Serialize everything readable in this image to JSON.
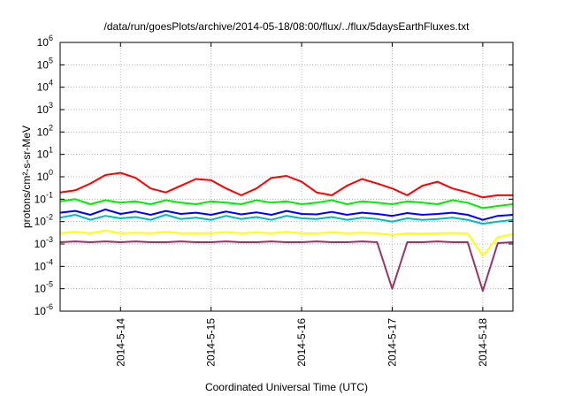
{
  "chart_data": {
    "type": "line",
    "title": "/data/run/goesPlots/archive/2014-05-18/08:00/flux/../flux/5daysEarthFluxes.txt",
    "xlabel": "Coordinated Universal Time (UTC)",
    "ylabel": "protons/cm²-s-sr-MeV",
    "yscale": "log",
    "ylim": [
      1e-06,
      1000000.0
    ],
    "xlim": [
      "2014-05-13T08:00",
      "2014-05-18T08:00"
    ],
    "grid": true,
    "y_ticks": [
      {
        "value": 1e-06,
        "base": "10",
        "exp": "-6"
      },
      {
        "value": 1e-05,
        "base": "10",
        "exp": "-5"
      },
      {
        "value": 0.0001,
        "base": "10",
        "exp": "-4"
      },
      {
        "value": 0.001,
        "base": "10",
        "exp": "-3"
      },
      {
        "value": 0.01,
        "base": "10",
        "exp": "-2"
      },
      {
        "value": 0.1,
        "base": "10",
        "exp": "-1"
      },
      {
        "value": 1.0,
        "base": "10",
        "exp": "0"
      },
      {
        "value": 10.0,
        "base": "10",
        "exp": "1"
      },
      {
        "value": 100.0,
        "base": "10",
        "exp": "2"
      },
      {
        "value": 1000.0,
        "base": "10",
        "exp": "3"
      },
      {
        "value": 10000.0,
        "base": "10",
        "exp": "4"
      },
      {
        "value": 100000.0,
        "base": "10",
        "exp": "5"
      },
      {
        "value": 1000000.0,
        "base": "10",
        "exp": "6"
      }
    ],
    "x_ticks": [
      {
        "value": "2014-05-14T00:00",
        "label": "2014-5-14"
      },
      {
        "value": "2014-05-15T00:00",
        "label": "2014-5-15"
      },
      {
        "value": "2014-05-16T00:00",
        "label": "2014-5-16"
      },
      {
        "value": "2014-05-17T00:00",
        "label": "2014-5-17"
      },
      {
        "value": "2014-05-18T00:00",
        "label": "2014-5-18"
      }
    ],
    "x": [
      "2014-05-13T08:00",
      "2014-05-13T12:00",
      "2014-05-13T16:00",
      "2014-05-13T20:00",
      "2014-05-14T00:00",
      "2014-05-14T04:00",
      "2014-05-14T08:00",
      "2014-05-14T12:00",
      "2014-05-14T16:00",
      "2014-05-14T20:00",
      "2014-05-15T00:00",
      "2014-05-15T04:00",
      "2014-05-15T08:00",
      "2014-05-15T12:00",
      "2014-05-15T16:00",
      "2014-05-15T20:00",
      "2014-05-16T00:00",
      "2014-05-16T04:00",
      "2014-05-16T08:00",
      "2014-05-16T12:00",
      "2014-05-16T16:00",
      "2014-05-16T20:00",
      "2014-05-17T00:00",
      "2014-05-17T04:00",
      "2014-05-17T08:00",
      "2014-05-17T12:00",
      "2014-05-17T16:00",
      "2014-05-17T20:00",
      "2014-05-18T00:00",
      "2014-05-18T04:00",
      "2014-05-18T08:00"
    ],
    "series": [
      {
        "color": "#ff0000",
        "values": [
          0.2,
          0.25,
          0.5,
          1.2,
          1.5,
          0.9,
          0.3,
          0.2,
          0.4,
          0.8,
          0.7,
          0.3,
          0.15,
          0.3,
          0.9,
          1.1,
          0.6,
          0.2,
          0.15,
          0.4,
          0.8,
          0.5,
          0.3,
          0.15,
          0.4,
          0.6,
          0.3,
          0.2,
          0.12,
          0.15,
          0.15
        ]
      },
      {
        "color": "#00ee00",
        "values": [
          0.08,
          0.1,
          0.06,
          0.09,
          0.07,
          0.08,
          0.06,
          0.09,
          0.07,
          0.06,
          0.08,
          0.07,
          0.06,
          0.09,
          0.07,
          0.08,
          0.06,
          0.07,
          0.09,
          0.06,
          0.08,
          0.07,
          0.06,
          0.08,
          0.07,
          0.06,
          0.09,
          0.07,
          0.04,
          0.05,
          0.06
        ]
      },
      {
        "color": "#00bbbb",
        "values": [
          0.015,
          0.02,
          0.012,
          0.018,
          0.014,
          0.016,
          0.012,
          0.02,
          0.013,
          0.015,
          0.012,
          0.018,
          0.013,
          0.016,
          0.012,
          0.018,
          0.014,
          0.013,
          0.016,
          0.012,
          0.015,
          0.013,
          0.01,
          0.014,
          0.012,
          0.013,
          0.015,
          0.012,
          0.008,
          0.01,
          0.012
        ]
      },
      {
        "color": "#0000ff",
        "values": [
          0.025,
          0.03,
          0.02,
          0.035,
          0.022,
          0.028,
          0.02,
          0.03,
          0.022,
          0.025,
          0.02,
          0.028,
          0.021,
          0.026,
          0.02,
          0.03,
          0.022,
          0.021,
          0.027,
          0.02,
          0.025,
          0.022,
          0.018,
          0.024,
          0.02,
          0.022,
          0.025,
          0.02,
          0.012,
          0.018,
          0.02
        ]
      },
      {
        "color": "#ffff00",
        "values": [
          0.003,
          0.0035,
          0.003,
          0.004,
          0.003,
          0.0032,
          0.003,
          0.0035,
          0.003,
          0.0031,
          0.003,
          0.0034,
          0.003,
          0.0033,
          0.003,
          0.0035,
          0.003,
          0.003,
          0.0033,
          0.003,
          0.0032,
          0.003,
          0.0025,
          0.003,
          0.0029,
          0.003,
          0.0031,
          0.003,
          0.0003,
          0.002,
          0.0028
        ]
      },
      {
        "color": "#993366",
        "values": [
          0.0012,
          0.0013,
          0.0012,
          0.0013,
          0.0012,
          0.0013,
          0.0012,
          0.0012,
          0.0013,
          0.0012,
          0.0012,
          0.0013,
          0.0012,
          0.0012,
          0.0013,
          0.0012,
          0.0012,
          0.0013,
          0.0012,
          0.0012,
          0.0013,
          0.0012,
          1e-05,
          0.0012,
          0.0012,
          0.0013,
          0.0012,
          0.0012,
          8e-06,
          0.0011,
          0.0012
        ]
      }
    ]
  }
}
